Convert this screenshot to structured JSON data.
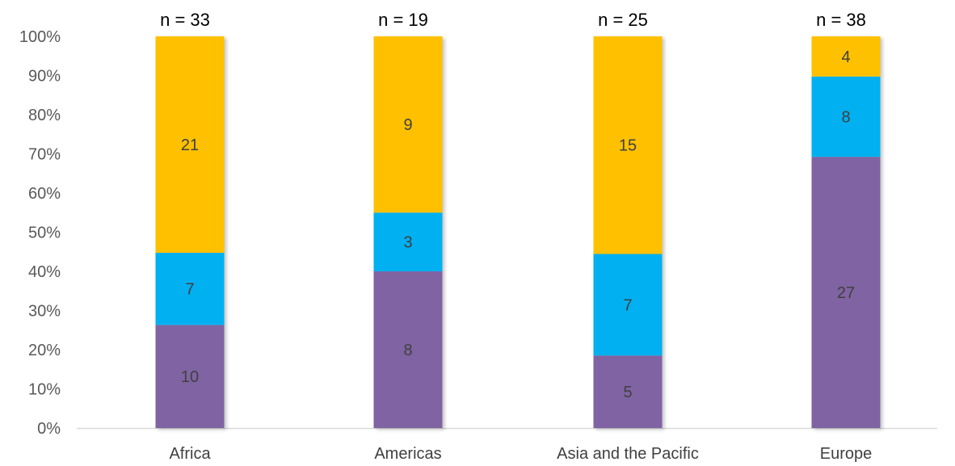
{
  "chart_data": {
    "type": "bar",
    "stacked": true,
    "normalized_percent": true,
    "title": "",
    "xlabel": "",
    "ylabel": "",
    "ylim": [
      0,
      100
    ],
    "y_ticks": [
      "0%",
      "10%",
      "20%",
      "30%",
      "40%",
      "50%",
      "60%",
      "70%",
      "80%",
      "90%",
      "100%"
    ],
    "grid": false,
    "categories": [
      "Africa",
      "Americas",
      "Asia and the Pacific",
      "Europe"
    ],
    "n_labels": [
      "n = 33",
      "n = 19",
      "n = 25",
      "n = 38"
    ],
    "series": [
      {
        "color": "#8064A2",
        "values": [
          10,
          8,
          5,
          27
        ]
      },
      {
        "color": "#00B0F0",
        "values": [
          7,
          3,
          7,
          8
        ]
      },
      {
        "color": "#FFC000",
        "values": [
          21,
          9,
          15,
          4
        ]
      }
    ]
  }
}
